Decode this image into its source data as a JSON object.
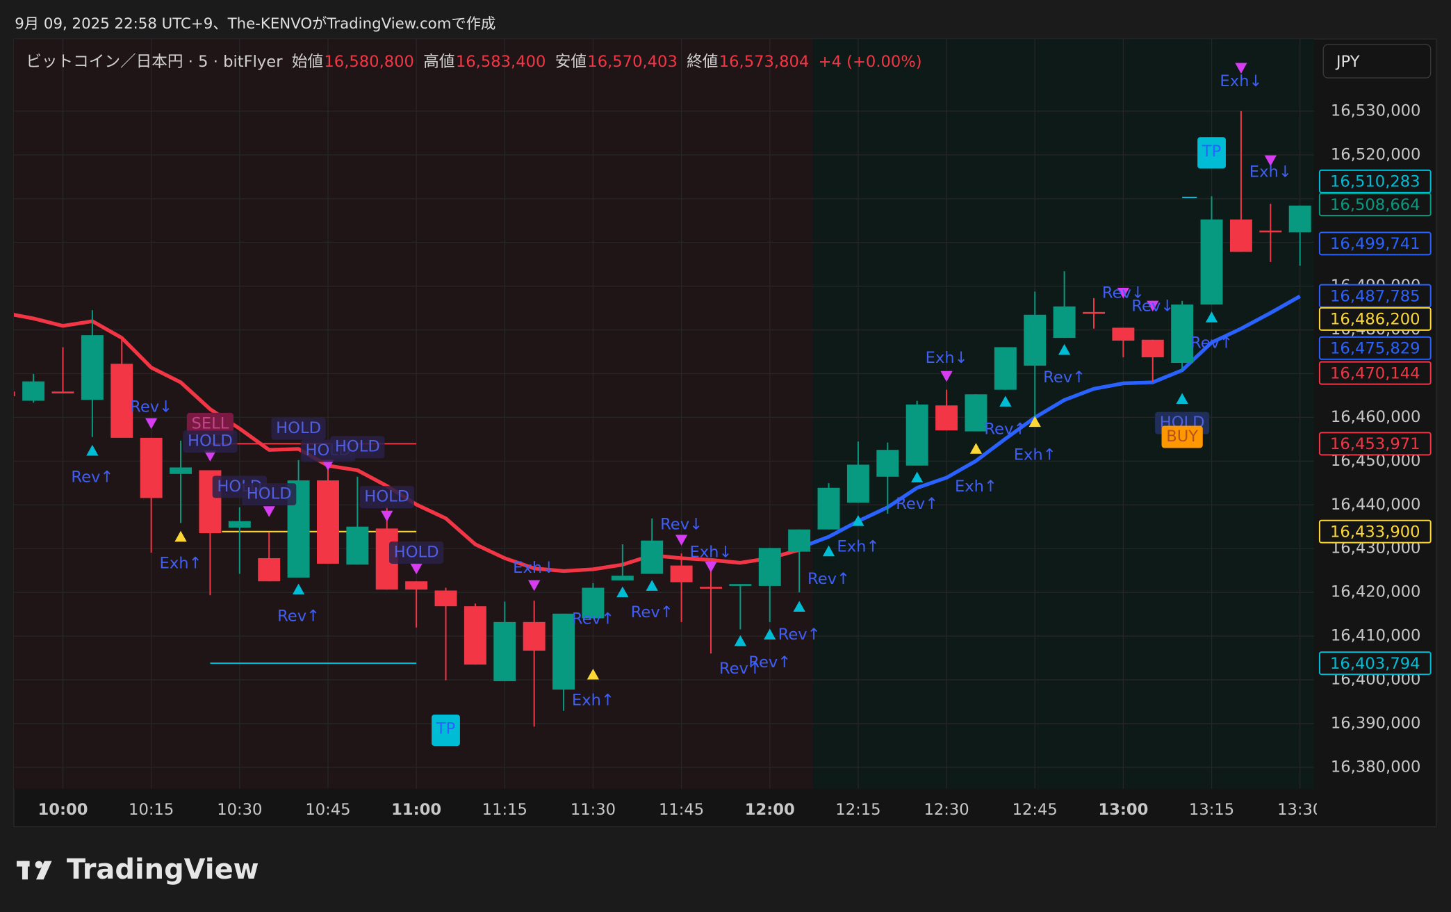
{
  "chart_data": {
    "type": "candlestick",
    "title": "9月 09, 2025 22:58 UTC+9、The-KENVOがTradingView.comで作成",
    "symbol": "ビットコイン／日本円 · 5 · bitFlyer",
    "ohlc": [
      [
        "始値",
        "16,580,800"
      ],
      [
        "高値",
        "16,583,400"
      ],
      [
        "安値",
        "16,570,403"
      ],
      [
        "終値",
        "16,573,804"
      ]
    ],
    "change": "+4 (+0.00%)",
    "currency": "JPY",
    "brand": "TradingView",
    "categories": [
      null,
      null,
      "10:00",
      null,
      null,
      "10:15",
      null,
      null,
      "10:30",
      null,
      null,
      "10:45",
      null,
      null,
      "11:00",
      null,
      null,
      "11:15",
      null,
      null,
      "11:30",
      null,
      null,
      "11:45",
      null,
      null,
      "12:00",
      null,
      null,
      "12:15",
      null,
      null,
      "12:30",
      null,
      null,
      "12:45",
      null,
      null,
      "13:00",
      null,
      null,
      "13:15",
      null,
      null,
      "13:30"
    ],
    "open": [
      16465900,
      16463800,
      16465900,
      16464000,
      16472250,
      16455320,
      16447070,
      16447920,
      16434800,
      16427820,
      16423380,
      16445590,
      16426340,
      16434590,
      16422530,
      16420420,
      16416820,
      16399690,
      16413220,
      16397780,
      16414070,
      16422740,
      16424230,
      16426130,
      16421260,
      16421470,
      16421470,
      16429300,
      16434380,
      16440510,
      16446440,
      16448980,
      16462730,
      16456800,
      16466320,
      16471820,
      16478170,
      16484090,
      16480500,
      16477750,
      16472460,
      16485790,
      16505250,
      16502710,
      16502290
    ],
    "high": [
      16465900,
      16469920,
      16476050,
      16484500,
      16478170,
      16455320,
      16454690,
      16447920,
      16439450,
      16433750,
      16450240,
      16448550,
      16446440,
      16439450,
      16422530,
      16421050,
      16417450,
      16417880,
      16418090,
      16415130,
      16422110,
      16430990,
      16436920,
      16428880,
      16425490,
      16421900,
      16430150,
      16434380,
      16444960,
      16454480,
      16454260,
      16463780,
      16466320,
      16465270,
      16476050,
      16488750,
      16493400,
      16487270,
      16480500,
      16477750,
      16486630,
      16510540,
      16530000,
      16508850,
      16508420
    ],
    "low": [
      16464420,
      16463360,
      16465480,
      16455530,
      16455320,
      16429090,
      16435860,
      16419360,
      16424230,
      16422530,
      16423380,
      16426550,
      16426340,
      16420630,
      16411960,
      16399900,
      16403490,
      16399690,
      16389320,
      16392920,
      16414070,
      16422740,
      16424230,
      16413220,
      16406030,
      16411530,
      16413220,
      16419990,
      16434380,
      16440510,
      16437980,
      16448980,
      16457020,
      16456800,
      16466320,
      16458500,
      16478170,
      16480290,
      16473730,
      16468020,
      16470770,
      16485790,
      16497840,
      16495520,
      16494670
    ],
    "close": [
      16464840,
      16468230,
      16465480,
      16478800,
      16455320,
      16441570,
      16448550,
      16433530,
      16436280,
      16422530,
      16445590,
      16426550,
      16435010,
      16420630,
      16420630,
      16416820,
      16403490,
      16413220,
      16406670,
      16415130,
      16421050,
      16423800,
      16431840,
      16422320,
      16420840,
      16421900,
      16430150,
      16434380,
      16443900,
      16449190,
      16452570,
      16462940,
      16457020,
      16465270,
      16476050,
      16483460,
      16485360,
      16483670,
      16477540,
      16473730,
      16485790,
      16505250,
      16497840,
      16502290,
      16508420
    ],
    "up_color": "#089981",
    "down_color": "#f23645",
    "lines": [
      {
        "color": "#f23645",
        "values": [
          16483880,
          16482610,
          16480920,
          16481980,
          16478170,
          16471400,
          16468020,
          16461880,
          16457440,
          16452570,
          16452780,
          16448980,
          16447920,
          16444320,
          16440090,
          16436920,
          16430990,
          16427820,
          16425490,
          16424860,
          16425280,
          16426340,
          16428460,
          16427820,
          16427400,
          16426760,
          16427820,
          16429720,
          null,
          null,
          null,
          null,
          null,
          null,
          null,
          null,
          null,
          null,
          null,
          null,
          null,
          null,
          null,
          null,
          null
        ]
      },
      {
        "color": "#2962ff",
        "values": [
          null,
          null,
          null,
          null,
          null,
          null,
          null,
          null,
          null,
          null,
          null,
          null,
          null,
          null,
          null,
          null,
          null,
          null,
          null,
          null,
          null,
          null,
          null,
          null,
          null,
          null,
          null,
          16430150,
          16432690,
          16436280,
          16439450,
          16443900,
          16446230,
          16450040,
          16455110,
          16459980,
          16463980,
          16466540,
          16467790,
          16468020,
          16470770,
          16477110,
          16480290,
          16483880,
          16487690
        ]
      }
    ],
    "ylim": [
      16375100,
      16546500
    ],
    "yticks": [
      {
        "value": 16380000,
        "label": "16,380,000"
      },
      {
        "value": 16390000,
        "label": "16,390,000"
      },
      {
        "value": 16400000,
        "label": "16,400,000"
      },
      {
        "value": 16410000,
        "label": "16,410,000"
      },
      {
        "value": 16420000,
        "label": "16,420,000"
      },
      {
        "value": 16430000,
        "label": "16,430,000"
      },
      {
        "value": 16440000,
        "label": "16,440,000"
      },
      {
        "value": 16450000,
        "label": "16,450,000"
      },
      {
        "value": 16460000,
        "label": "16,460,000"
      },
      {
        "value": 16470000,
        "label": "16,470,000"
      },
      {
        "value": 16480000,
        "label": "16,480,000"
      },
      {
        "value": 16490000,
        "label": "16,490,000"
      },
      {
        "value": 16500000,
        "label": "16,500,000"
      },
      {
        "value": 16510000,
        "label": "16,510,000"
      },
      {
        "value": 16520000,
        "label": "16,520,000"
      },
      {
        "value": 16530000,
        "label": "16,530,000"
      }
    ],
    "grid": true,
    "price_labels": [
      {
        "value": 16508664,
        "label": "16,508,664",
        "color": "#089981"
      },
      {
        "value": 16510283,
        "label": "16,510,283",
        "color": "#00bcd4",
        "from": 40,
        "to": 40.5
      },
      {
        "value": 16499741,
        "label": "16,499,741",
        "color": "#2962ff"
      },
      {
        "value": 16487785,
        "label": "16,487,785",
        "color": "#2962ff"
      },
      {
        "value": 16486200,
        "label": "16,486,200",
        "color": "#fdd835"
      },
      {
        "value": 16475829,
        "label": "16,475,829",
        "color": "#2962ff"
      },
      {
        "value": 16470144,
        "label": "16,470,144",
        "color": "#f23645"
      },
      {
        "value": 16453971,
        "label": "16,453,971",
        "color": "#f23645",
        "from": 7,
        "to": 14
      },
      {
        "value": 16433900,
        "label": "16,433,900",
        "color": "#fdd835",
        "from": 7.4,
        "to": 14
      },
      {
        "value": 16403794,
        "label": "16,403,794",
        "color": "#00bcd4",
        "from": 7,
        "to": 14
      }
    ],
    "annotations": [
      {
        "text": "Rev↓",
        "at": 5,
        "price": 16462300,
        "color": "#3f5ef5"
      },
      {
        "text": "Rev↑",
        "at": 3,
        "price": 16446230,
        "color": "#3f5ef5"
      },
      {
        "text": "Exh↑",
        "at": 6,
        "price": 16426550,
        "color": "#3f5ef5"
      },
      {
        "text": "SELL",
        "at": 7,
        "price": 16458500,
        "color": "#c2468a",
        "bg": "#7a1a42"
      },
      {
        "text": "HOLD",
        "at": 7,
        "price": 16454480,
        "color": "#4f5fe0",
        "bg": "#2a2148"
      },
      {
        "text": "HOLD",
        "at": 10,
        "price": 16457440,
        "color": "#4f5fe0",
        "bg": "#2a2148"
      },
      {
        "text": "HOLD",
        "at": 11,
        "price": 16452360,
        "color": "#4f5fe0",
        "bg": "#2a2148"
      },
      {
        "text": "HOLD",
        "at": 12,
        "price": 16453200,
        "color": "#4f5fe0",
        "bg": "#2a2148"
      },
      {
        "text": "HOLD",
        "at": 8,
        "price": 16444110,
        "color": "#4f5fe0",
        "bg": "#2a2148"
      },
      {
        "text": "HOLD",
        "at": 9,
        "price": 16442420,
        "color": "#4f5fe0",
        "bg": "#2a2148"
      },
      {
        "text": "HOLD",
        "at": 13,
        "price": 16441780,
        "color": "#4f5fe0",
        "bg": "#2a2148"
      },
      {
        "text": "HOLD",
        "at": 14,
        "price": 16429090,
        "color": "#4f5fe0",
        "bg": "#2a2148"
      },
      {
        "text": "Rev↑",
        "at": 10,
        "price": 16414500,
        "color": "#3f5ef5"
      },
      {
        "text": "TP",
        "at": 15,
        "price": 16388680,
        "color": "#2962ff",
        "bg": "#00bcd4"
      },
      {
        "text": "Exh↓",
        "at": 18,
        "price": 16425490,
        "color": "#3f5ef5"
      },
      {
        "text": "Rev↑",
        "at": 20,
        "price": 16413860,
        "color": "#3f5ef5"
      },
      {
        "text": "Rev↑",
        "at": 22,
        "price": 16415340,
        "color": "#3f5ef5"
      },
      {
        "text": "Exh↑",
        "at": 20,
        "price": 16395240,
        "color": "#3f5ef5"
      },
      {
        "text": "Rev↓",
        "at": 23,
        "price": 16435440,
        "color": "#3f5ef5"
      },
      {
        "text": "Exh↓",
        "at": 24,
        "price": 16429090,
        "color": "#3f5ef5"
      },
      {
        "text": "Rev↑",
        "at": 25,
        "price": 16402440,
        "color": "#3f5ef5"
      },
      {
        "text": "Rev↑",
        "at": 26,
        "price": 16403920,
        "color": "#3f5ef5"
      },
      {
        "text": "Rev↑",
        "at": 27,
        "price": 16410260,
        "color": "#3f5ef5"
      },
      {
        "text": "Rev↑",
        "at": 28,
        "price": 16422950,
        "color": "#3f5ef5"
      },
      {
        "text": "Exh↑",
        "at": 29,
        "price": 16430360,
        "color": "#3f5ef5"
      },
      {
        "text": "Rev↑",
        "at": 31,
        "price": 16440090,
        "color": "#3f5ef5"
      },
      {
        "text": "Exh↓",
        "at": 32,
        "price": 16473520,
        "color": "#3f5ef5"
      },
      {
        "text": "Exh↑",
        "at": 33,
        "price": 16444110,
        "color": "#3f5ef5"
      },
      {
        "text": "Rev↑",
        "at": 34,
        "price": 16457230,
        "color": "#3f5ef5"
      },
      {
        "text": "Exh↑",
        "at": 35,
        "price": 16451300,
        "color": "#3f5ef5"
      },
      {
        "text": "Rev↑",
        "at": 36,
        "price": 16469070,
        "color": "#3f5ef5"
      },
      {
        "text": "Rev↓",
        "at": 38,
        "price": 16488320,
        "color": "#3f5ef5"
      },
      {
        "text": "Rev↓",
        "at": 39,
        "price": 16485360,
        "color": "#3f5ef5"
      },
      {
        "text": "HOLD",
        "at": 40,
        "price": 16458710,
        "color": "#4f5fe0",
        "bg": "#1f2e5a"
      },
      {
        "text": "BUY",
        "at": 40,
        "price": 16455540,
        "color": "#b3541e",
        "bg": "#ff9800"
      },
      {
        "text": "Rev↑",
        "at": 41,
        "price": 16476900,
        "color": "#3f5ef5"
      },
      {
        "text": "TP",
        "at": 41,
        "price": 16520690,
        "color": "#2962ff",
        "bg": "#00bcd4"
      },
      {
        "text": "Exh↓",
        "at": 42,
        "price": 16536770,
        "color": "#3f5ef5"
      },
      {
        "text": "Exh↓",
        "at": 43,
        "price": 16516040,
        "color": "#3f5ef5"
      }
    ],
    "markers": [
      {
        "shape": "up",
        "color": "#00bcd4",
        "at": 3,
        "price": 16452360
      },
      {
        "shape": "up",
        "color": "#00bcd4",
        "at": 10,
        "price": 16420630
      },
      {
        "shape": "up",
        "color": "#00bcd4",
        "at": 21,
        "price": 16419990
      },
      {
        "shape": "up",
        "color": "#00bcd4",
        "at": 22,
        "price": 16421470
      },
      {
        "shape": "up",
        "color": "#00bcd4",
        "at": 25,
        "price": 16408840
      },
      {
        "shape": "up",
        "color": "#00bcd4",
        "at": 26,
        "price": 16410330
      },
      {
        "shape": "up",
        "color": "#00bcd4",
        "at": 27,
        "price": 16416670
      },
      {
        "shape": "up",
        "color": "#00bcd4",
        "at": 28,
        "price": 16429360
      },
      {
        "shape": "up",
        "color": "#00bcd4",
        "at": 29,
        "price": 16436280
      },
      {
        "shape": "up",
        "color": "#00bcd4",
        "at": 31,
        "price": 16446230
      },
      {
        "shape": "up",
        "color": "#00bcd4",
        "at": 34,
        "price": 16463570
      },
      {
        "shape": "up",
        "color": "#00bcd4",
        "at": 36,
        "price": 16475400
      },
      {
        "shape": "up",
        "color": "#00bcd4",
        "at": 40,
        "price": 16464200
      },
      {
        "shape": "up",
        "color": "#00bcd4",
        "at": 41,
        "price": 16482820
      },
      {
        "shape": "up",
        "color": "#fdd835",
        "at": 6,
        "price": 16432690
      },
      {
        "shape": "up",
        "color": "#fdd835",
        "at": 20,
        "price": 16401180
      },
      {
        "shape": "up",
        "color": "#fdd835",
        "at": 33,
        "price": 16452780
      },
      {
        "shape": "up",
        "color": "#fdd835",
        "at": 35,
        "price": 16458920
      },
      {
        "shape": "down",
        "color": "#d63cf0",
        "at": 5,
        "price": 16458710
      },
      {
        "shape": "down",
        "color": "#d63cf0",
        "at": 7,
        "price": 16451300
      },
      {
        "shape": "down",
        "color": "#d63cf0",
        "at": 9,
        "price": 16438600
      },
      {
        "shape": "down",
        "color": "#d63cf0",
        "at": 11,
        "price": 16449190
      },
      {
        "shape": "down",
        "color": "#d63cf0",
        "at": 13,
        "price": 16437560
      },
      {
        "shape": "down",
        "color": "#d63cf0",
        "at": 14,
        "price": 16425490
      },
      {
        "shape": "down",
        "color": "#d63cf0",
        "at": 18,
        "price": 16421680
      },
      {
        "shape": "down",
        "color": "#d63cf0",
        "at": 23,
        "price": 16432050
      },
      {
        "shape": "down",
        "color": "#d63cf0",
        "at": 24,
        "price": 16425920
      },
      {
        "shape": "down",
        "color": "#d63cf0",
        "at": 32,
        "price": 16469490
      },
      {
        "shape": "down",
        "color": "#d63cf0",
        "at": 38,
        "price": 16488530
      },
      {
        "shape": "down",
        "color": "#d63cf0",
        "at": 39,
        "price": 16485570
      },
      {
        "shape": "down",
        "color": "#d63cf0",
        "at": 42,
        "price": 16539940
      },
      {
        "shape": "down",
        "color": "#d63cf0",
        "at": 43,
        "price": 16518790
      }
    ]
  }
}
